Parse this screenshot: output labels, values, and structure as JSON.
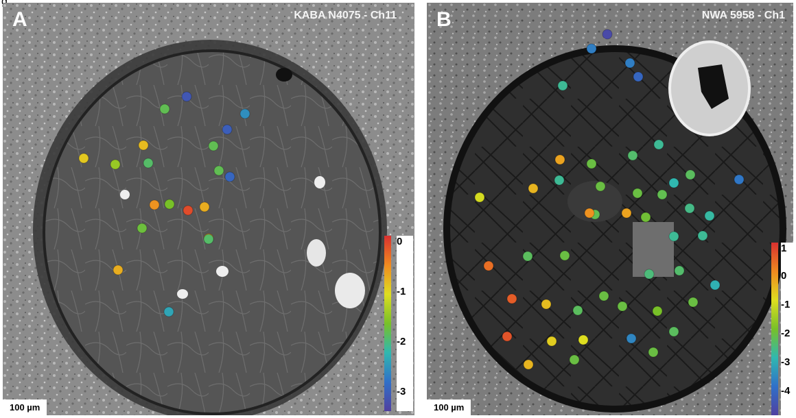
{
  "figure_label": "g",
  "panels": [
    {
      "id": "A",
      "letter": "A",
      "title": "KABA N4075 - Ch11",
      "scale_bar": "100 µm",
      "colorbar": {
        "ticks": [
          "0",
          "-1",
          "-2",
          "-3"
        ],
        "colors": [
          "#d93030",
          "#f08a20",
          "#dede20",
          "#78c028",
          "#30b8b0",
          "#3070c8",
          "#5040a0"
        ]
      },
      "spots": [
        {
          "v": -3.3
        },
        {
          "v": -1.9
        },
        {
          "v": -2.7
        },
        {
          "v": -3.2
        },
        {
          "v": -0.8
        },
        {
          "v": -1.9
        },
        {
          "v": -0.9
        },
        {
          "v": -1.5
        },
        {
          "v": -2.0
        },
        {
          "v": -3.1
        },
        {
          "v": -0.5
        },
        {
          "v": -1.7
        },
        {
          "v": -0.7
        },
        {
          "v": 0.0
        },
        {
          "v": -0.6
        },
        {
          "v": -1.8
        },
        {
          "v": -1.9
        },
        {
          "v": -2.0
        },
        {
          "v": -0.7
        },
        {
          "v": -2.5
        }
      ]
    },
    {
      "id": "B",
      "letter": "B",
      "title": "NWA 5958 - Ch1",
      "scale_bar": "100 µm",
      "colorbar": {
        "ticks": [
          "1",
          "0",
          "-1",
          "-2",
          "-3",
          "-4"
        ],
        "colors": [
          "#d93030",
          "#f08a20",
          "#dede20",
          "#78c028",
          "#30b8b0",
          "#3070c8",
          "#5040a0"
        ]
      },
      "spots": [
        {
          "v": -4.6
        },
        {
          "v": -3.6
        },
        {
          "v": -3.6
        },
        {
          "v": -4.0
        },
        {
          "v": -2.6
        },
        {
          "v": -2.6
        },
        {
          "v": -2.3
        },
        {
          "v": -2.0
        },
        {
          "v": -2.6
        },
        {
          "v": -0.1
        },
        {
          "v": -2.0
        },
        {
          "v": -2.8
        },
        {
          "v": -3.7
        },
        {
          "v": -2.0
        },
        {
          "v": -0.3
        },
        {
          "v": -2.1
        },
        {
          "v": -2.2
        },
        {
          "v": -2.1
        },
        {
          "v": -2.5
        },
        {
          "v": -1.9
        },
        {
          "v": -2.7
        },
        {
          "v": 0.1
        },
        {
          "v": -0.1
        },
        {
          "v": -0.9
        },
        {
          "v": -2.6
        },
        {
          "v": 0.5
        },
        {
          "v": -2.2
        },
        {
          "v": -2.0
        },
        {
          "v": -2.6
        },
        {
          "v": -2.4
        },
        {
          "v": -2.3
        },
        {
          "v": -2.0
        },
        {
          "v": -2.9
        },
        {
          "v": 0.7
        },
        {
          "v": -0.4
        },
        {
          "v": -2.0
        },
        {
          "v": -2.0
        },
        {
          "v": -1.8
        },
        {
          "v": -2.2
        },
        {
          "v": 0.8
        },
        {
          "v": -0.6
        },
        {
          "v": -0.8
        },
        {
          "v": -3.5
        },
        {
          "v": -2.0
        },
        {
          "v": -0.3
        },
        {
          "v": -2.0
        },
        {
          "v": -2.2
        }
      ]
    }
  ]
}
